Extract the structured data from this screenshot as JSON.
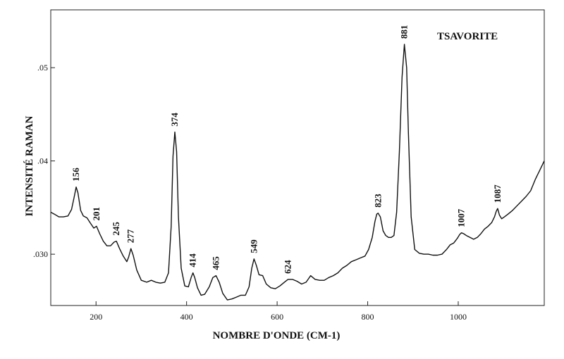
{
  "chart_data": {
    "type": "line",
    "title": "TSAVORITE",
    "xlabel": "NOMBRE D'ONDE (CM-1)",
    "ylabel": "INTENSITÉ RAMAN",
    "xlim": [
      100,
      1190
    ],
    "ylim": [
      0.0245,
      0.0562
    ],
    "x_ticks": [
      200,
      400,
      600,
      800,
      1000
    ],
    "x_tick_labels": [
      "200",
      "400",
      "600",
      "800",
      "1000"
    ],
    "y_ticks": [
      0.03,
      0.04,
      0.05
    ],
    "y_tick_labels": [
      ".030",
      ".04",
      ".05"
    ],
    "grid": false,
    "peak_labels": [
      {
        "x": 156,
        "y": 0.0372,
        "label": "156"
      },
      {
        "x": 201,
        "y": 0.033,
        "label": "201"
      },
      {
        "x": 245,
        "y": 0.0314,
        "label": "245"
      },
      {
        "x": 277,
        "y": 0.0306,
        "label": "277"
      },
      {
        "x": 374,
        "y": 0.0431,
        "label": "374"
      },
      {
        "x": 414,
        "y": 0.028,
        "label": "414"
      },
      {
        "x": 465,
        "y": 0.0277,
        "label": "465"
      },
      {
        "x": 549,
        "y": 0.0295,
        "label": "549"
      },
      {
        "x": 624,
        "y": 0.0273,
        "label": "624"
      },
      {
        "x": 823,
        "y": 0.0344,
        "label": "823"
      },
      {
        "x": 881,
        "y": 0.0525,
        "label": "881"
      },
      {
        "x": 1007,
        "y": 0.0323,
        "label": "1007"
      },
      {
        "x": 1087,
        "y": 0.0349,
        "label": "1087"
      }
    ],
    "series": [
      {
        "x": [
          100,
          108,
          118,
          128,
          138,
          146,
          152,
          156,
          160,
          166,
          172,
          180,
          188,
          195,
          201,
          208,
          216,
          224,
          232,
          240,
          245,
          252,
          260,
          268,
          272,
          277,
          282,
          290,
          300,
          312,
          322,
          332,
          342,
          352,
          360,
          366,
          370,
          374,
          378,
          382,
          388,
          396,
          404,
          410,
          414,
          418,
          424,
          432,
          440,
          450,
          458,
          465,
          472,
          480,
          490,
          500,
          510,
          520,
          530,
          538,
          544,
          549,
          554,
          560,
          568,
          576,
          586,
          596,
          606,
          616,
          624,
          634,
          644,
          654,
          664,
          674,
          684,
          694,
          704,
          714,
          724,
          734,
          744,
          754,
          764,
          774,
          784,
          794,
          802,
          810,
          816,
          820,
          823,
          828,
          834,
          840,
          846,
          852,
          858,
          864,
          870,
          876,
          881,
          886,
          890,
          896,
          904,
          914,
          924,
          934,
          944,
          954,
          964,
          974,
          982,
          990,
          998,
          1003,
          1007,
          1012,
          1018,
          1026,
          1034,
          1042,
          1050,
          1058,
          1066,
          1074,
          1080,
          1084,
          1087,
          1091,
          1096,
          1102,
          1110,
          1120,
          1130,
          1140,
          1150,
          1160,
          1170,
          1180,
          1190
        ],
        "y": [
          0.0345,
          0.0343,
          0.034,
          0.034,
          0.0341,
          0.0348,
          0.0362,
          0.0372,
          0.0366,
          0.0347,
          0.0341,
          0.0339,
          0.0333,
          0.0328,
          0.033,
          0.0322,
          0.0314,
          0.0309,
          0.0309,
          0.0313,
          0.0314,
          0.0306,
          0.0298,
          0.0292,
          0.0297,
          0.0306,
          0.0299,
          0.0283,
          0.0272,
          0.027,
          0.0272,
          0.027,
          0.0269,
          0.027,
          0.028,
          0.033,
          0.0405,
          0.0431,
          0.041,
          0.034,
          0.0285,
          0.0266,
          0.0265,
          0.0275,
          0.028,
          0.0275,
          0.0264,
          0.0256,
          0.0257,
          0.0265,
          0.0275,
          0.0277,
          0.027,
          0.0258,
          0.0251,
          0.0252,
          0.0254,
          0.0256,
          0.0256,
          0.0265,
          0.0285,
          0.0295,
          0.0288,
          0.0278,
          0.0277,
          0.0268,
          0.0264,
          0.0263,
          0.0266,
          0.027,
          0.0273,
          0.0273,
          0.0271,
          0.0268,
          0.027,
          0.0277,
          0.0273,
          0.0272,
          0.0272,
          0.0275,
          0.0277,
          0.028,
          0.0285,
          0.0288,
          0.0292,
          0.0294,
          0.0296,
          0.0298,
          0.0305,
          0.0318,
          0.0335,
          0.0343,
          0.0344,
          0.034,
          0.0325,
          0.032,
          0.0318,
          0.0318,
          0.032,
          0.0345,
          0.041,
          0.049,
          0.0525,
          0.05,
          0.043,
          0.034,
          0.0305,
          0.0301,
          0.03,
          0.03,
          0.0299,
          0.0299,
          0.03,
          0.0305,
          0.031,
          0.0312,
          0.0317,
          0.0321,
          0.0323,
          0.0322,
          0.032,
          0.0318,
          0.0316,
          0.0318,
          0.0322,
          0.0327,
          0.033,
          0.0334,
          0.034,
          0.0346,
          0.0349,
          0.0342,
          0.0338,
          0.034,
          0.0343,
          0.0347,
          0.0352,
          0.0357,
          0.0362,
          0.0368,
          0.038,
          0.039,
          0.04
        ]
      }
    ]
  }
}
